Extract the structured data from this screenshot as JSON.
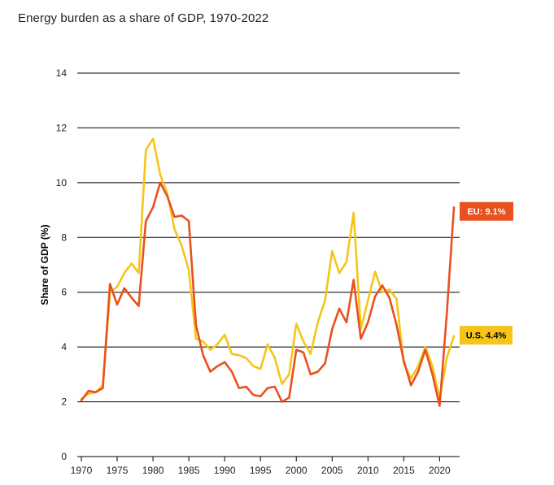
{
  "chart_data": {
    "type": "line",
    "title": "Energy burden as a share of GDP, 1970-2022",
    "xlabel": "",
    "ylabel": "Share of GDP (%)",
    "ylim": [
      0,
      14
    ],
    "xlim": [
      1970,
      2022
    ],
    "yticks": [
      0,
      2,
      4,
      6,
      8,
      10,
      12,
      14
    ],
    "xticks": [
      1970,
      1975,
      1980,
      1985,
      1990,
      1995,
      2000,
      2005,
      2010,
      2015,
      2020
    ],
    "grid": "horizontal",
    "x": [
      1970,
      1971,
      1972,
      1973,
      1974,
      1975,
      1976,
      1977,
      1978,
      1979,
      1980,
      1981,
      1982,
      1983,
      1984,
      1985,
      1986,
      1987,
      1988,
      1989,
      1990,
      1991,
      1992,
      1993,
      1994,
      1995,
      1996,
      1997,
      1998,
      1999,
      2000,
      2001,
      2002,
      2003,
      2004,
      2005,
      2006,
      2007,
      2008,
      2009,
      2010,
      2011,
      2012,
      2013,
      2014,
      2015,
      2016,
      2017,
      2018,
      2019,
      2020,
      2021,
      2022
    ],
    "series": [
      {
        "name": "U.S.",
        "color": "#F5C518",
        "end_label": "U.S. 4.4%",
        "values": [
          2.1,
          2.3,
          2.35,
          2.6,
          6.0,
          6.2,
          6.7,
          7.05,
          6.7,
          11.2,
          11.6,
          10.3,
          9.6,
          8.3,
          7.7,
          6.8,
          4.3,
          4.2,
          3.9,
          4.1,
          4.45,
          3.75,
          3.7,
          3.6,
          3.3,
          3.2,
          4.1,
          3.6,
          2.65,
          3.0,
          4.85,
          4.2,
          3.75,
          4.9,
          5.7,
          7.5,
          6.7,
          7.1,
          8.9,
          4.65,
          5.7,
          6.75,
          6.0,
          6.1,
          5.75,
          3.4,
          2.85,
          3.3,
          4.0,
          3.3,
          2.1,
          3.6,
          4.4
        ]
      },
      {
        "name": "EU",
        "color": "#E8511E",
        "end_label": "EU: 9.1%",
        "values": [
          2.05,
          2.4,
          2.35,
          2.5,
          6.3,
          5.55,
          6.15,
          5.8,
          5.5,
          8.6,
          9.1,
          10.0,
          9.5,
          8.75,
          8.8,
          8.6,
          4.8,
          3.7,
          3.1,
          3.3,
          3.45,
          3.1,
          2.5,
          2.55,
          2.25,
          2.2,
          2.5,
          2.55,
          2.0,
          2.15,
          3.9,
          3.8,
          3.0,
          3.1,
          3.4,
          4.65,
          5.4,
          4.9,
          6.45,
          4.3,
          4.9,
          5.85,
          6.25,
          5.8,
          4.8,
          3.5,
          2.6,
          3.1,
          3.9,
          3.0,
          1.85,
          5.2,
          9.1
        ]
      }
    ]
  }
}
